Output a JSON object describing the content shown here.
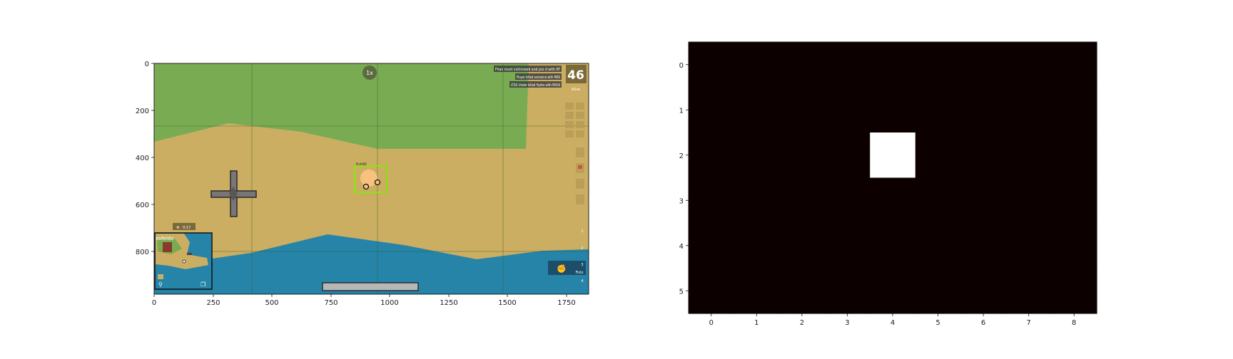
{
  "left_panel": {
    "y_ticks": [
      "0",
      "200",
      "400",
      "600",
      "800"
    ],
    "x_ticks": [
      "0",
      "250",
      "500",
      "750",
      "1000",
      "1250",
      "1500",
      "1750"
    ],
    "kill_feed": [
      "Fhan most victimized and pro d with KT",
      "Player killed someone with MSR",
      "LTSD Under killed Hydra with M416"
    ],
    "players_alive_count": "46",
    "players_alive_label": "Alive",
    "zone_timer_badge": "1x",
    "zone_timer": "0:17",
    "minimap_label": "esfeido",
    "player_tag": "PLAYER",
    "weapon_slots": [
      "1",
      "2",
      "3",
      "4"
    ],
    "selected_weapon": "Fists",
    "colors": {
      "grass": "#79ab52",
      "sand": "#cbae62",
      "water": "#2584a8",
      "player": "#f7c27d",
      "player_box": "#84e80c",
      "hud_panel": "#7a6a3a"
    }
  },
  "right_panel": {
    "chart_data": {
      "type": "heatmap",
      "rows": 6,
      "cols": 9,
      "y_ticks": [
        "0",
        "1",
        "2",
        "3",
        "4",
        "5"
      ],
      "x_ticks": [
        "0",
        "1",
        "2",
        "3",
        "4",
        "5",
        "6",
        "7",
        "8"
      ],
      "values": [
        [
          0,
          0,
          0,
          0,
          0,
          0,
          0,
          0,
          0
        ],
        [
          0,
          0,
          0,
          0,
          0,
          0,
          0,
          0,
          0
        ],
        [
          0,
          0,
          0,
          0,
          1,
          0,
          0,
          0,
          0
        ],
        [
          0,
          0,
          0,
          0,
          0,
          0,
          0,
          0,
          0
        ],
        [
          0,
          0,
          0,
          0,
          0,
          0,
          0,
          0,
          0
        ],
        [
          0,
          0,
          0,
          0,
          0,
          0,
          0,
          0,
          0
        ]
      ],
      "colormap": [
        "#0d0000",
        "#ffffff"
      ]
    }
  }
}
